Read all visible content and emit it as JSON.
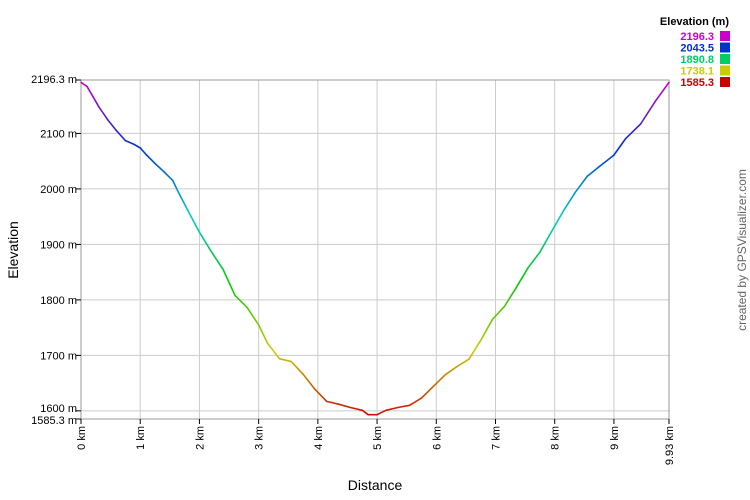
{
  "chart_data": {
    "type": "line",
    "xlabel": "Distance",
    "ylabel": "Elevation",
    "xlim": [
      0,
      9.93
    ],
    "ylim": [
      1585.3,
      2196.3
    ],
    "x_ticks": [
      {
        "value": 0,
        "label": "0 km"
      },
      {
        "value": 1,
        "label": "1 km"
      },
      {
        "value": 2,
        "label": "2 km"
      },
      {
        "value": 3,
        "label": "3 km"
      },
      {
        "value": 4,
        "label": "4 km"
      },
      {
        "value": 5,
        "label": "5 km"
      },
      {
        "value": 6,
        "label": "6 km"
      },
      {
        "value": 7,
        "label": "7 km"
      },
      {
        "value": 8,
        "label": "8 km"
      },
      {
        "value": 9,
        "label": "9 km"
      },
      {
        "value": 9.93,
        "label": "9.93 km"
      }
    ],
    "y_ticks": [
      {
        "value": 2196.3,
        "label": "2196.3 m"
      },
      {
        "value": 2100,
        "label": "2100 m"
      },
      {
        "value": 2000,
        "label": "2000 m"
      },
      {
        "value": 1900,
        "label": "1900 m"
      },
      {
        "value": 1800,
        "label": "1800 m"
      },
      {
        "value": 1700,
        "label": "1700 m"
      },
      {
        "value": 1600,
        "label": "1600 m"
      },
      {
        "value": 1585.3,
        "label": "1585.3 m"
      }
    ],
    "grid": true,
    "legend": {
      "title": "Elevation (m)",
      "placement": "top-right",
      "entries": [
        {
          "label": "2196.3",
          "color": "#cc00cc"
        },
        {
          "label": "2043.5",
          "color": "#0033cc"
        },
        {
          "label": "1890.8",
          "color": "#00cc66"
        },
        {
          "label": "1738.1",
          "color": "#cccc00"
        },
        {
          "label": "1585.3",
          "color": "#cc0000"
        }
      ]
    },
    "color_scale": [
      "#cc00cc",
      "#0033cc",
      "#00cccc",
      "#00cc00",
      "#cccc00",
      "#cc0000"
    ],
    "series": [
      {
        "x": [
          0,
          0.1,
          0.2,
          0.3,
          0.45,
          0.6,
          0.75,
          0.9,
          1.0,
          1.1,
          1.25,
          1.4,
          1.55,
          1.65,
          1.8,
          2.0,
          2.2,
          2.4,
          2.6,
          2.8,
          3.0,
          3.15,
          3.35,
          3.55,
          3.75,
          3.95,
          4.15,
          4.35,
          4.55,
          4.75,
          4.85,
          5.0,
          5.15,
          5.35,
          5.55,
          5.75,
          5.95,
          6.15,
          6.35,
          6.55,
          6.75,
          6.95,
          7.15,
          7.35,
          7.55,
          7.75,
          7.95,
          8.15,
          8.35,
          8.55,
          8.75,
          9.0,
          9.2,
          9.45,
          9.7,
          9.93
        ],
        "y": [
          2192,
          2185,
          2167,
          2148,
          2125,
          2105,
          2087,
          2080,
          2074,
          2062,
          2046,
          2031,
          2015,
          1993,
          1962,
          1922,
          1887,
          1855,
          1808,
          1787,
          1755,
          1722,
          1694,
          1689,
          1666,
          1639,
          1617,
          1612,
          1606,
          1601,
          1593,
          1593,
          1601,
          1606,
          1610,
          1623,
          1644,
          1665,
          1680,
          1693,
          1727,
          1765,
          1788,
          1822,
          1858,
          1886,
          1924,
          1961,
          1994,
          2023,
          2040,
          2061,
          2091,
          2117,
          2158,
          2192
        ]
      }
    ]
  },
  "credit": "created by GPSVisualizer.com"
}
